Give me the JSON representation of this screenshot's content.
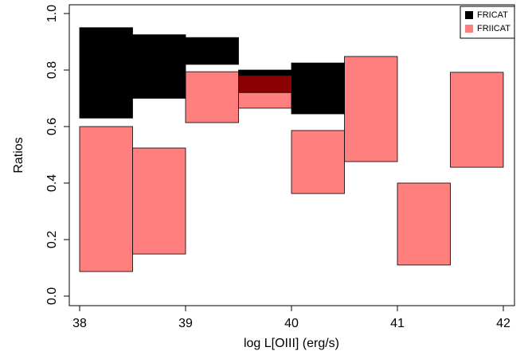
{
  "chart_data": {
    "type": "range-histogram",
    "x_label": "log L[OIII] (erg/s)",
    "y_label": "Ratios",
    "bins": [
      38,
      38.5,
      39,
      39.5,
      40,
      40.5,
      41,
      41.5,
      42
    ],
    "series": [
      {
        "name": "FRICAT",
        "color": "#000000",
        "low": [
          0.63,
          0.7,
          0.82,
          0.72,
          0.645,
          null,
          null,
          null
        ],
        "high": [
          0.95,
          0.925,
          0.915,
          0.8,
          0.825,
          null,
          null,
          null
        ]
      },
      {
        "name": "FRIICAT",
        "color": "#ff7f7f",
        "low": [
          0.087,
          0.149,
          0.614,
          0.665,
          0.363,
          0.476,
          0.11,
          0.456
        ],
        "high": [
          0.6,
          0.524,
          0.794,
          0.78,
          0.586,
          0.848,
          0.4,
          0.792
        ]
      }
    ],
    "overlap_color": "#8b0000",
    "xlim": [
      38,
      42
    ],
    "xticks": [
      38,
      39,
      40,
      41,
      42
    ],
    "ylim": [
      0,
      1
    ],
    "yticks": [
      {
        "value": 0,
        "label": "0.0"
      },
      0.2,
      0.4,
      0.6,
      0.8,
      {
        "value": 1,
        "label": "1.0"
      }
    ],
    "legend": "top-right"
  }
}
